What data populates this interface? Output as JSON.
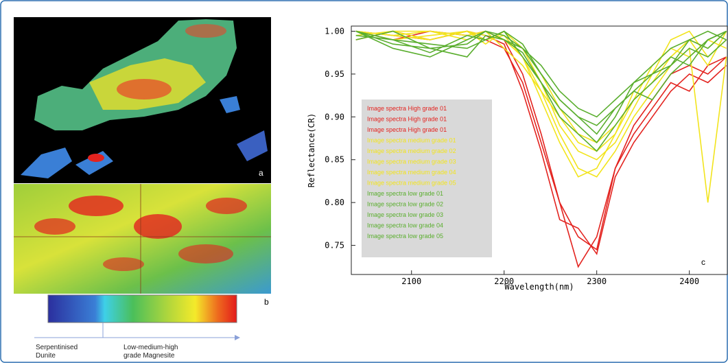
{
  "chart_data": {
    "type": "line",
    "x_label": "Wavelength(nm)",
    "y_label": "Reflectance(CR)",
    "panel_label": "c",
    "x": [
      2040,
      2080,
      2120,
      2160,
      2180,
      2200,
      2220,
      2240,
      2260,
      2280,
      2300,
      2320,
      2340,
      2360,
      2380,
      2400,
      2420,
      2440
    ],
    "xlim": [
      2035,
      2441
    ],
    "xticks": [
      2100,
      2200,
      2300,
      2400
    ],
    "ylim": [
      0.716,
      1.006
    ],
    "yticks": [
      {
        "value": 1.0,
        "label": "1.00"
      },
      0.95,
      {
        "value": 0.9,
        "label": "0.90"
      },
      0.85,
      {
        "value": 0.8,
        "label": "0.80"
      },
      0.75
    ],
    "series": [
      {
        "name": "Image spectra High grade 01",
        "color": "#e3231f",
        "values": [
          1.0,
          0.99,
          1.0,
          0.995,
          1.0,
          0.99,
          0.95,
          0.88,
          0.8,
          0.725,
          0.76,
          0.84,
          0.88,
          0.91,
          0.94,
          0.93,
          0.96,
          0.97
        ]
      },
      {
        "name": "Image spectra High grade 01",
        "color": "#e3231f",
        "values": [
          0.99,
          1.0,
          0.99,
          1.0,
          0.995,
          0.985,
          0.93,
          0.86,
          0.78,
          0.77,
          0.74,
          0.83,
          0.87,
          0.9,
          0.93,
          0.95,
          0.94,
          0.96
        ]
      },
      {
        "name": "Image spectra High grade 01",
        "color": "#e3231f",
        "values": [
          1.0,
          0.995,
          0.99,
          1.0,
          0.99,
          0.98,
          0.94,
          0.87,
          0.8,
          0.76,
          0.745,
          0.84,
          0.89,
          0.92,
          0.95,
          0.96,
          0.95,
          0.97
        ]
      },
      {
        "name": "Image spectra medium grade 01",
        "color": "#f2e41c",
        "values": [
          1.0,
          0.995,
          1.0,
          0.99,
          1.0,
          0.99,
          0.97,
          0.93,
          0.88,
          0.84,
          0.83,
          0.86,
          0.9,
          0.93,
          0.96,
          0.98,
          0.8,
          0.97
        ]
      },
      {
        "name": "Image spectra medium grade 02",
        "color": "#f2e41c",
        "values": [
          0.995,
          1.0,
          0.99,
          1.0,
          0.985,
          1.0,
          0.98,
          0.94,
          0.89,
          0.86,
          0.85,
          0.87,
          0.91,
          0.95,
          0.97,
          0.99,
          0.98,
          1.0
        ]
      },
      {
        "name": "Image spectra medium grade 03",
        "color": "#f2e41c",
        "values": [
          1.0,
          0.99,
          0.995,
          1.0,
          0.99,
          0.995,
          0.97,
          0.92,
          0.87,
          0.83,
          0.84,
          0.88,
          0.92,
          0.96,
          0.98,
          0.97,
          0.99,
          0.98
        ]
      },
      {
        "name": "Image spectra medium grade 04",
        "color": "#f2e41c",
        "values": [
          0.99,
          1.0,
          1.0,
          0.995,
          1.0,
          0.98,
          0.96,
          0.93,
          0.9,
          0.87,
          0.86,
          0.88,
          0.93,
          0.95,
          0.99,
          1.0,
          0.97,
          0.99
        ]
      },
      {
        "name": "Image spectra medium grade 05",
        "color": "#f2e41c",
        "values": [
          1.0,
          0.995,
          0.99,
          1.0,
          0.995,
          0.99,
          0.98,
          0.95,
          0.91,
          0.88,
          0.87,
          0.89,
          0.92,
          0.94,
          0.97,
          0.99,
          0.96,
          1.0
        ]
      },
      {
        "name": "Image spectra low grade 01",
        "color": "#5aae2e",
        "values": [
          1.0,
          0.98,
          0.97,
          0.99,
          1.0,
          0.99,
          0.98,
          0.95,
          0.92,
          0.9,
          0.89,
          0.91,
          0.93,
          0.92,
          0.95,
          0.97,
          0.99,
          1.0
        ]
      },
      {
        "name": "Image spectra low grade 02",
        "color": "#5aae2e",
        "values": [
          0.995,
          0.99,
          0.975,
          0.995,
          0.99,
          1.0,
          0.97,
          0.94,
          0.91,
          0.89,
          0.87,
          0.9,
          0.94,
          0.95,
          0.96,
          0.98,
          0.97,
          0.99
        ]
      },
      {
        "name": "Image spectra low grade 03",
        "color": "#5aae2e",
        "values": [
          1.0,
          0.985,
          0.98,
          0.97,
          0.995,
          0.99,
          0.975,
          0.94,
          0.9,
          0.88,
          0.86,
          0.89,
          0.92,
          0.94,
          0.96,
          0.99,
          1.0,
          0.99
        ]
      },
      {
        "name": "Image spectra low  grade 04",
        "color": "#5aae2e",
        "values": [
          0.99,
          1.0,
          0.98,
          0.985,
          1.0,
          0.995,
          0.98,
          0.96,
          0.93,
          0.91,
          0.9,
          0.92,
          0.94,
          0.96,
          0.98,
          0.99,
          0.98,
          1.0
        ]
      },
      {
        "name": "Image spectra low  grade 05",
        "color": "#5aae2e",
        "values": [
          1.0,
          0.99,
          0.985,
          0.98,
          0.99,
          1.0,
          0.985,
          0.95,
          0.92,
          0.9,
          0.88,
          0.91,
          0.93,
          0.95,
          0.97,
          0.96,
          0.99,
          1.0
        ]
      }
    ]
  },
  "map_panels": {
    "top_label": "a",
    "bottom_label": "b"
  },
  "colorbar": {
    "left_label_1": "Serpentinised",
    "left_label_2": "Dunite",
    "right_label_1": "Low-medium-high",
    "right_label_2": "grade   Magnesite"
  }
}
